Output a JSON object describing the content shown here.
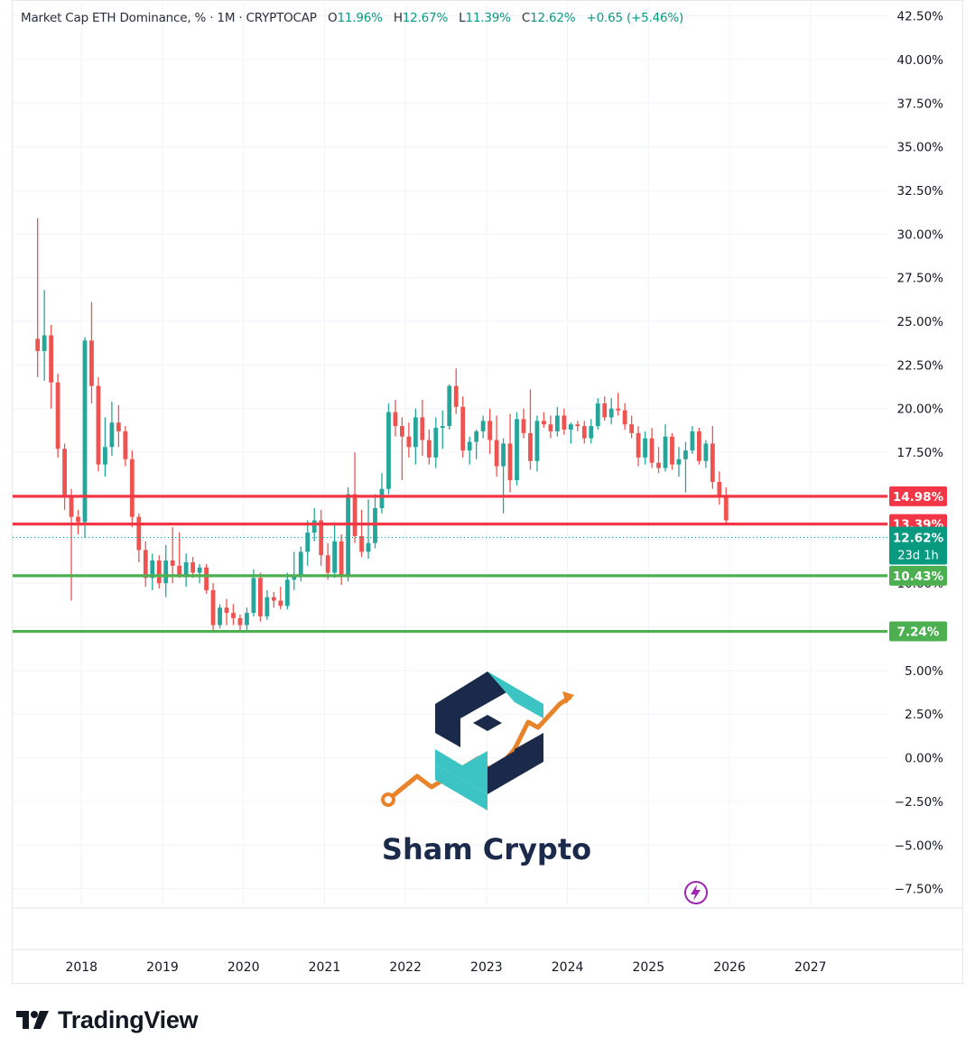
{
  "legend": {
    "symbol": "Market Cap ETH Dominance, % · 1M · CRYPTOCAP",
    "open_label": "O",
    "open": "11.96%",
    "high_label": "H",
    "high": "12.67%",
    "low_label": "L",
    "low": "11.39%",
    "close_label": "C",
    "close": "12.62%",
    "change": "+0.65 (+5.46%)"
  },
  "branding": {
    "watermark": "Sham Crypto",
    "tradingview": "TradingView"
  },
  "icons": {
    "watermark_logo": "sham-crypto-logo",
    "bolt": "lightning-icon",
    "tv": "tradingview-logo"
  },
  "colors": {
    "up": "#26a69a",
    "down": "#ef5350",
    "resistance": "#f23645",
    "support": "#4caf50",
    "current": "#089981"
  },
  "chart_data": {
    "type": "candlestick",
    "title": "Market Cap ETH Dominance, % · 1M · CRYPTOCAP",
    "interval": "1M",
    "x_ticks": [
      "2018",
      "2019",
      "2020",
      "2021",
      "2022",
      "2023",
      "2024",
      "2025",
      "2026",
      "2027"
    ],
    "y_ticks": [
      "42.50%",
      "40.00%",
      "37.50%",
      "35.00%",
      "32.50%",
      "30.00%",
      "27.50%",
      "25.00%",
      "22.50%",
      "20.00%",
      "17.50%",
      "15.00%",
      "12.50%",
      "10.00%",
      "7.50%",
      "5.00%",
      "2.50%",
      "0.00%",
      "−2.50%",
      "−5.00%",
      "−7.50%"
    ],
    "ylim": [
      -8.5,
      43.2
    ],
    "xlim": [
      2017.15,
      2027.95
    ],
    "grid": true,
    "horizontal_levels": [
      {
        "value": 14.98,
        "label": "14.98%",
        "kind": "resistance"
      },
      {
        "value": 13.39,
        "label": "13.39%",
        "kind": "resistance"
      },
      {
        "value": 10.43,
        "label": "10.43%",
        "kind": "support"
      },
      {
        "value": 7.24,
        "label": "7.24%",
        "kind": "support"
      }
    ],
    "current_price": {
      "value": 12.62,
      "label": "12.62%",
      "countdown": "23d 1h"
    },
    "candles": [
      {
        "t": "2017-06",
        "o": 24.0,
        "h": 30.9,
        "l": 21.8,
        "c": 23.3
      },
      {
        "t": "2017-07",
        "o": 23.3,
        "h": 26.8,
        "l": 21.6,
        "c": 24.2
      },
      {
        "t": "2017-08",
        "o": 24.2,
        "h": 24.8,
        "l": 20.0,
        "c": 21.5
      },
      {
        "t": "2017-09",
        "o": 21.5,
        "h": 22.0,
        "l": 17.2,
        "c": 17.7
      },
      {
        "t": "2017-10",
        "o": 17.7,
        "h": 18.0,
        "l": 14.2,
        "c": 15.0
      },
      {
        "t": "2017-11",
        "o": 15.0,
        "h": 15.4,
        "l": 9.0,
        "c": 13.8
      },
      {
        "t": "2017-12",
        "o": 13.8,
        "h": 14.2,
        "l": 12.8,
        "c": 13.5
      },
      {
        "t": "2018-01",
        "o": 13.5,
        "h": 24.1,
        "l": 12.6,
        "c": 23.9
      },
      {
        "t": "2018-02",
        "o": 23.9,
        "h": 26.1,
        "l": 20.3,
        "c": 21.3
      },
      {
        "t": "2018-03",
        "o": 21.3,
        "h": 21.8,
        "l": 16.4,
        "c": 16.8
      },
      {
        "t": "2018-04",
        "o": 16.8,
        "h": 19.5,
        "l": 16.1,
        "c": 17.8
      },
      {
        "t": "2018-05",
        "o": 17.8,
        "h": 20.4,
        "l": 17.3,
        "c": 19.2
      },
      {
        "t": "2018-06",
        "o": 19.2,
        "h": 20.2,
        "l": 17.8,
        "c": 18.7
      },
      {
        "t": "2018-07",
        "o": 18.7,
        "h": 19.0,
        "l": 16.7,
        "c": 17.1
      },
      {
        "t": "2018-08",
        "o": 17.1,
        "h": 17.6,
        "l": 13.2,
        "c": 13.8
      },
      {
        "t": "2018-09",
        "o": 13.8,
        "h": 14.0,
        "l": 11.2,
        "c": 11.9
      },
      {
        "t": "2018-10",
        "o": 11.9,
        "h": 12.4,
        "l": 9.8,
        "c": 10.3
      },
      {
        "t": "2018-11",
        "o": 10.3,
        "h": 11.7,
        "l": 9.6,
        "c": 11.3
      },
      {
        "t": "2018-12",
        "o": 11.3,
        "h": 11.6,
        "l": 9.7,
        "c": 10.0
      },
      {
        "t": "2019-01",
        "o": 10.0,
        "h": 12.2,
        "l": 9.2,
        "c": 11.3
      },
      {
        "t": "2019-02",
        "o": 11.3,
        "h": 13.2,
        "l": 10.0,
        "c": 11.0
      },
      {
        "t": "2019-03",
        "o": 11.0,
        "h": 12.9,
        "l": 10.3,
        "c": 10.4
      },
      {
        "t": "2019-04",
        "o": 10.4,
        "h": 11.7,
        "l": 9.8,
        "c": 11.2
      },
      {
        "t": "2019-05",
        "o": 11.2,
        "h": 11.5,
        "l": 10.3,
        "c": 10.6
      },
      {
        "t": "2019-06",
        "o": 10.6,
        "h": 11.1,
        "l": 10.0,
        "c": 10.9
      },
      {
        "t": "2019-07",
        "o": 10.9,
        "h": 11.1,
        "l": 9.4,
        "c": 9.6
      },
      {
        "t": "2019-08",
        "o": 9.6,
        "h": 10.0,
        "l": 7.3,
        "c": 7.6
      },
      {
        "t": "2019-09",
        "o": 7.6,
        "h": 8.8,
        "l": 7.4,
        "c": 8.6
      },
      {
        "t": "2019-10",
        "o": 8.6,
        "h": 9.1,
        "l": 7.6,
        "c": 8.3
      },
      {
        "t": "2019-11",
        "o": 8.3,
        "h": 8.8,
        "l": 7.6,
        "c": 8.0
      },
      {
        "t": "2019-12",
        "o": 8.0,
        "h": 8.2,
        "l": 7.2,
        "c": 7.6
      },
      {
        "t": "2020-01",
        "o": 7.6,
        "h": 8.6,
        "l": 7.2,
        "c": 8.3
      },
      {
        "t": "2020-02",
        "o": 8.3,
        "h": 10.8,
        "l": 8.1,
        "c": 10.3
      },
      {
        "t": "2020-03",
        "o": 10.3,
        "h": 10.6,
        "l": 7.8,
        "c": 8.1
      },
      {
        "t": "2020-04",
        "o": 8.1,
        "h": 9.6,
        "l": 7.9,
        "c": 9.2
      },
      {
        "t": "2020-05",
        "o": 9.2,
        "h": 9.5,
        "l": 8.6,
        "c": 9.0
      },
      {
        "t": "2020-06",
        "o": 9.0,
        "h": 9.8,
        "l": 8.5,
        "c": 8.7
      },
      {
        "t": "2020-07",
        "o": 8.7,
        "h": 10.6,
        "l": 8.5,
        "c": 10.2
      },
      {
        "t": "2020-08",
        "o": 10.2,
        "h": 11.8,
        "l": 9.6,
        "c": 10.4
      },
      {
        "t": "2020-09",
        "o": 10.4,
        "h": 12.1,
        "l": 10.1,
        "c": 11.8
      },
      {
        "t": "2020-10",
        "o": 11.8,
        "h": 13.6,
        "l": 11.0,
        "c": 12.9
      },
      {
        "t": "2020-11",
        "o": 12.9,
        "h": 14.3,
        "l": 12.4,
        "c": 13.6
      },
      {
        "t": "2020-12",
        "o": 13.6,
        "h": 14.2,
        "l": 11.0,
        "c": 11.6
      },
      {
        "t": "2021-01",
        "o": 11.6,
        "h": 12.3,
        "l": 10.2,
        "c": 10.6
      },
      {
        "t": "2021-02",
        "o": 10.6,
        "h": 13.5,
        "l": 10.3,
        "c": 12.4
      },
      {
        "t": "2021-03",
        "o": 12.4,
        "h": 12.8,
        "l": 9.9,
        "c": 10.4
      },
      {
        "t": "2021-04",
        "o": 10.4,
        "h": 15.5,
        "l": 10.1,
        "c": 15.1
      },
      {
        "t": "2021-05",
        "o": 15.1,
        "h": 17.5,
        "l": 12.3,
        "c": 12.7
      },
      {
        "t": "2021-06",
        "o": 12.7,
        "h": 14.2,
        "l": 11.5,
        "c": 11.8
      },
      {
        "t": "2021-07",
        "o": 11.8,
        "h": 14.8,
        "l": 11.4,
        "c": 12.3
      },
      {
        "t": "2021-08",
        "o": 12.3,
        "h": 15.1,
        "l": 12.0,
        "c": 14.3
      },
      {
        "t": "2021-09",
        "o": 14.3,
        "h": 16.3,
        "l": 14.0,
        "c": 15.4
      },
      {
        "t": "2021-10",
        "o": 15.4,
        "h": 20.3,
        "l": 15.1,
        "c": 19.8
      },
      {
        "t": "2021-11",
        "o": 19.8,
        "h": 20.5,
        "l": 18.4,
        "c": 19.0
      },
      {
        "t": "2021-12",
        "o": 19.0,
        "h": 19.5,
        "l": 15.9,
        "c": 18.4
      },
      {
        "t": "2022-01",
        "o": 18.4,
        "h": 19.2,
        "l": 17.2,
        "c": 17.8
      },
      {
        "t": "2022-02",
        "o": 17.8,
        "h": 20.0,
        "l": 16.8,
        "c": 19.5
      },
      {
        "t": "2022-03",
        "o": 19.5,
        "h": 20.5,
        "l": 17.3,
        "c": 18.2
      },
      {
        "t": "2022-04",
        "o": 18.2,
        "h": 18.8,
        "l": 16.8,
        "c": 17.2
      },
      {
        "t": "2022-05",
        "o": 17.2,
        "h": 19.5,
        "l": 16.6,
        "c": 18.9
      },
      {
        "t": "2022-06",
        "o": 18.9,
        "h": 19.9,
        "l": 17.7,
        "c": 19.0
      },
      {
        "t": "2022-07",
        "o": 19.0,
        "h": 21.4,
        "l": 18.8,
        "c": 21.3
      },
      {
        "t": "2022-08",
        "o": 21.3,
        "h": 22.3,
        "l": 19.7,
        "c": 20.1
      },
      {
        "t": "2022-09",
        "o": 20.1,
        "h": 20.7,
        "l": 17.2,
        "c": 17.6
      },
      {
        "t": "2022-10",
        "o": 17.6,
        "h": 18.4,
        "l": 16.8,
        "c": 18.1
      },
      {
        "t": "2022-11",
        "o": 18.1,
        "h": 18.8,
        "l": 17.1,
        "c": 18.7
      },
      {
        "t": "2022-12",
        "o": 18.7,
        "h": 19.6,
        "l": 18.3,
        "c": 19.3
      },
      {
        "t": "2023-01",
        "o": 19.3,
        "h": 20.0,
        "l": 17.4,
        "c": 18.2
      },
      {
        "t": "2023-02",
        "o": 18.2,
        "h": 19.6,
        "l": 16.1,
        "c": 16.7
      },
      {
        "t": "2023-03",
        "o": 16.7,
        "h": 18.3,
        "l": 14.0,
        "c": 18.0
      },
      {
        "t": "2023-04",
        "o": 18.0,
        "h": 19.7,
        "l": 15.2,
        "c": 15.9
      },
      {
        "t": "2023-05",
        "o": 15.9,
        "h": 19.8,
        "l": 15.6,
        "c": 19.4
      },
      {
        "t": "2023-06",
        "o": 19.4,
        "h": 20.0,
        "l": 18.3,
        "c": 18.6
      },
      {
        "t": "2023-07",
        "o": 18.6,
        "h": 21.1,
        "l": 16.5,
        "c": 17.0
      },
      {
        "t": "2023-08",
        "o": 17.0,
        "h": 19.6,
        "l": 16.4,
        "c": 19.3
      },
      {
        "t": "2023-09",
        "o": 19.3,
        "h": 19.8,
        "l": 18.9,
        "c": 19.1
      },
      {
        "t": "2023-10",
        "o": 19.1,
        "h": 19.6,
        "l": 18.3,
        "c": 18.7
      },
      {
        "t": "2023-11",
        "o": 18.7,
        "h": 20.1,
        "l": 18.4,
        "c": 19.6
      },
      {
        "t": "2023-12",
        "o": 19.6,
        "h": 20.0,
        "l": 18.5,
        "c": 18.8
      },
      {
        "t": "2024-01",
        "o": 18.8,
        "h": 19.2,
        "l": 18.0,
        "c": 19.1
      },
      {
        "t": "2024-02",
        "o": 19.1,
        "h": 19.3,
        "l": 18.7,
        "c": 19.0
      },
      {
        "t": "2024-03",
        "o": 19.0,
        "h": 19.3,
        "l": 18.0,
        "c": 18.3
      },
      {
        "t": "2024-04",
        "o": 18.3,
        "h": 19.4,
        "l": 18.0,
        "c": 19.0
      },
      {
        "t": "2024-05",
        "o": 19.0,
        "h": 20.6,
        "l": 18.8,
        "c": 20.3
      },
      {
        "t": "2024-06",
        "o": 20.3,
        "h": 20.7,
        "l": 19.3,
        "c": 19.5
      },
      {
        "t": "2024-07",
        "o": 19.5,
        "h": 20.6,
        "l": 19.1,
        "c": 20.0
      },
      {
        "t": "2024-08",
        "o": 20.0,
        "h": 20.9,
        "l": 19.6,
        "c": 19.9
      },
      {
        "t": "2024-09",
        "o": 19.9,
        "h": 20.3,
        "l": 18.8,
        "c": 19.1
      },
      {
        "t": "2024-10",
        "o": 19.1,
        "h": 19.6,
        "l": 18.3,
        "c": 18.6
      },
      {
        "t": "2024-11",
        "o": 18.6,
        "h": 19.0,
        "l": 16.7,
        "c": 17.2
      },
      {
        "t": "2024-12",
        "o": 17.2,
        "h": 18.7,
        "l": 16.8,
        "c": 18.3
      },
      {
        "t": "2025-01",
        "o": 18.3,
        "h": 18.9,
        "l": 16.6,
        "c": 16.9
      },
      {
        "t": "2025-02",
        "o": 16.9,
        "h": 17.8,
        "l": 16.3,
        "c": 16.6
      },
      {
        "t": "2025-03",
        "o": 16.6,
        "h": 19.1,
        "l": 16.4,
        "c": 18.4
      },
      {
        "t": "2025-04",
        "o": 18.4,
        "h": 18.6,
        "l": 16.5,
        "c": 16.8
      },
      {
        "t": "2025-05",
        "o": 16.8,
        "h": 17.8,
        "l": 16.1,
        "c": 17.1
      },
      {
        "t": "2025-06",
        "o": 17.1,
        "h": 18.1,
        "l": 15.2,
        "c": 17.6
      },
      {
        "t": "2025-07",
        "o": 17.6,
        "h": 19.0,
        "l": 17.4,
        "c": 18.7
      },
      {
        "t": "2025-08",
        "o": 18.7,
        "h": 18.9,
        "l": 16.8,
        "c": 17.0
      },
      {
        "t": "2025-09",
        "o": 17.0,
        "h": 18.2,
        "l": 16.6,
        "c": 18.0
      },
      {
        "t": "2025-10",
        "o": 18.0,
        "h": 19.0,
        "l": 15.4,
        "c": 15.8
      },
      {
        "t": "2025-11",
        "o": 15.8,
        "h": 16.4,
        "l": 14.5,
        "c": 15.0
      },
      {
        "t": "2025-12",
        "o": 15.0,
        "h": 15.5,
        "l": 13.4,
        "c": 13.6
      }
    ]
  }
}
